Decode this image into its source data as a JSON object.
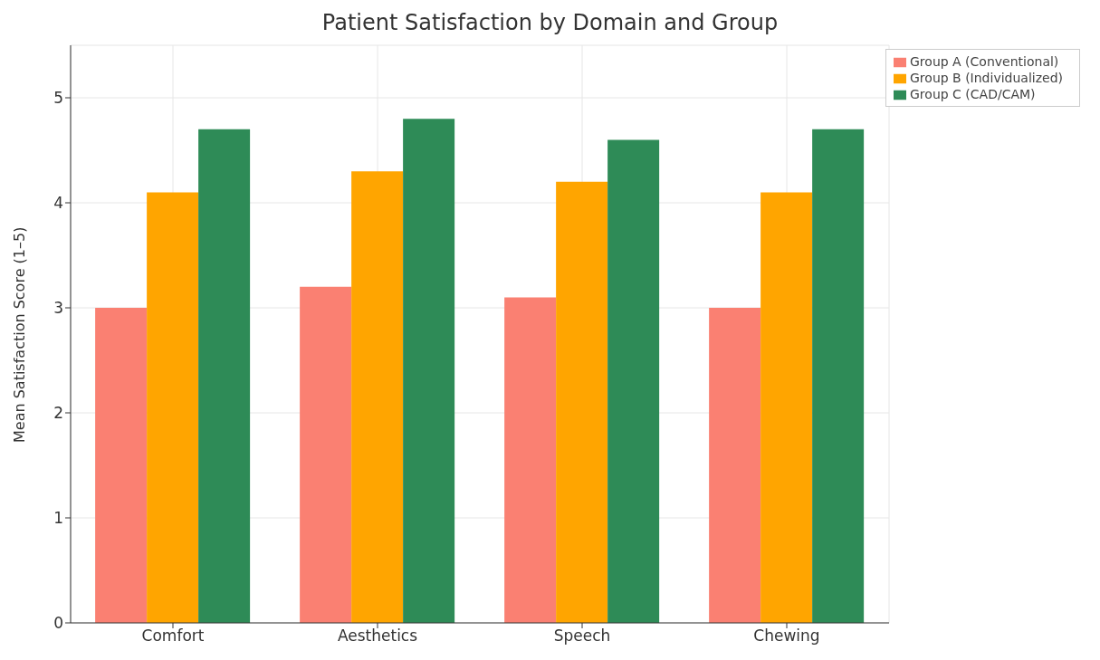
{
  "chart_data": {
    "type": "bar",
    "title": "Patient Satisfaction by Domain and Group",
    "ylabel": "Mean Satisfaction Score (1–5)",
    "categories": [
      "Comfort",
      "Aesthetics",
      "Speech",
      "Chewing"
    ],
    "series": [
      {
        "name": "Group A (Conventional)",
        "color": "#fa8072",
        "values": [
          3.0,
          3.2,
          3.1,
          3.0
        ]
      },
      {
        "name": "Group B (Individualized)",
        "color": "#ffa500",
        "values": [
          4.1,
          4.3,
          4.2,
          4.1
        ]
      },
      {
        "name": "Group C (CAD/CAM)",
        "color": "#2e8b57",
        "values": [
          4.7,
          4.8,
          4.6,
          4.7
        ]
      }
    ],
    "ylim": [
      0,
      5.5
    ],
    "yticks": [
      0,
      1,
      2,
      3,
      4,
      5
    ],
    "grid": true,
    "legend": "top right"
  }
}
